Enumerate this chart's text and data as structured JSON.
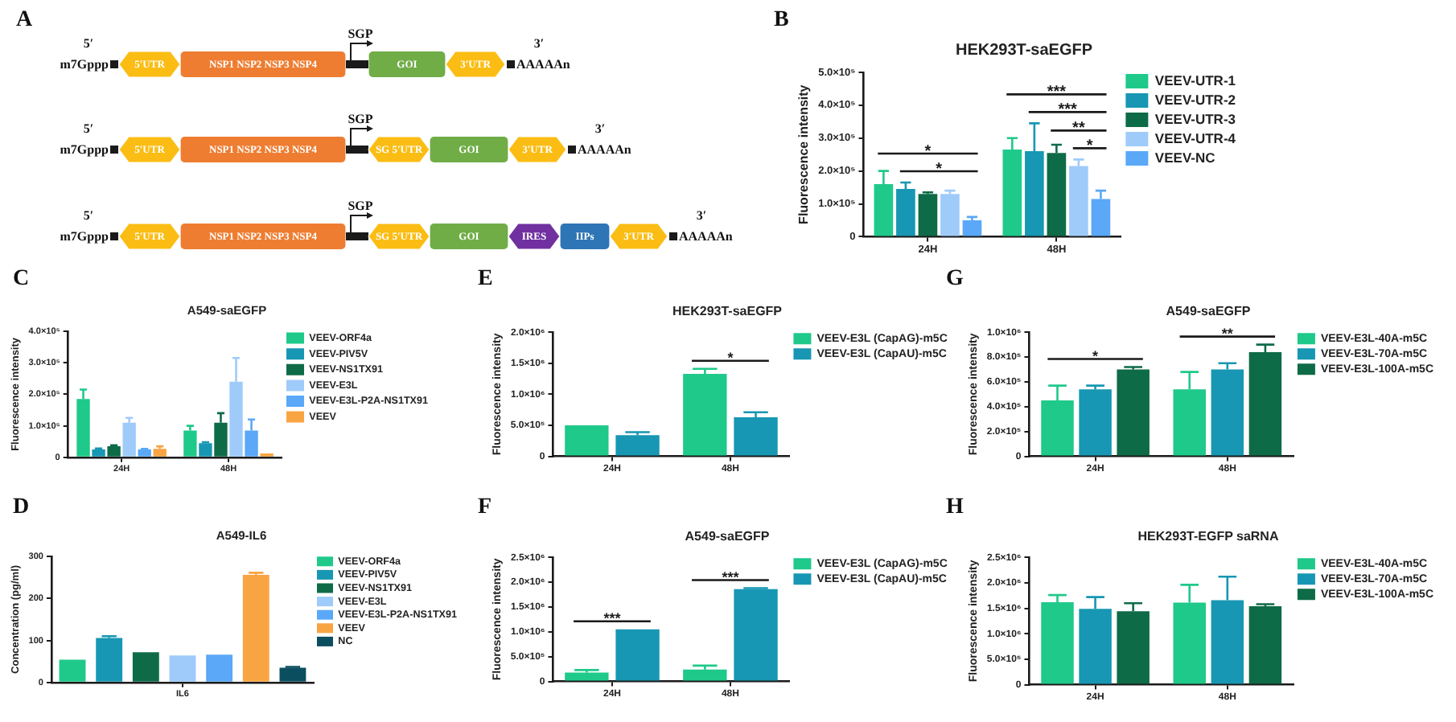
{
  "chart_data": [
    {
      "type": "other",
      "annotations": [
        "A",
        "5′",
        "m7Gppp",
        "5′UTR",
        "NSP1 NSP2 NSP3 NSP4",
        "SGP",
        "GOI",
        "3′UTR",
        "3′",
        "AAAAAn",
        "5′",
        "m7Gppp",
        "5′UTR",
        "NSP1 NSP2 NSP3 NSP4",
        "SGP",
        "SG 5′UTR",
        "GOI",
        "3′UTR",
        "3′",
        "AAAAAn",
        "5′",
        "m7Gppp",
        "5′UTR",
        "NSP1 NSP2 NSP3 NSP4",
        "SGP",
        "SG 5′UTR",
        "GOI",
        "IRES",
        "IIPs",
        "3′UTR",
        "3′",
        "AAAAAn"
      ]
    },
    {
      "type": "bar",
      "title": "HEK293T-saEGFP",
      "ylabel": "Fluorescence intensity",
      "categories": [
        "24H",
        "48H"
      ],
      "series": [
        {
          "name": "VEEV-UTR-1",
          "color": "#1fc98a",
          "values": [
            160000,
            265000
          ],
          "errors": [
            [
              160000,
              200000
            ],
            [
              265000,
              300000
            ]
          ]
        },
        {
          "name": "VEEV-UTR-2",
          "color": "#1797b3",
          "values": [
            145000,
            260000
          ],
          "errors": [
            [
              145000,
              165000
            ],
            [
              260000,
              345000
            ]
          ]
        },
        {
          "name": "VEEV-UTR-3",
          "color": "#0e6b47",
          "values": [
            130000,
            255000
          ],
          "errors": [
            [
              130000,
              135000
            ],
            [
              255000,
              280000
            ]
          ]
        },
        {
          "name": "VEEV-UTR-4",
          "color": "#9fcbfa",
          "values": [
            130000,
            215000
          ],
          "errors": [
            [
              130000,
              140000
            ],
            [
              215000,
              235000
            ]
          ]
        },
        {
          "name": "VEEV-NC",
          "color": "#5aa8f7",
          "values": [
            50000,
            115000
          ],
          "errors": [
            [
              50000,
              60000
            ],
            [
              115000,
              140000
            ]
          ]
        }
      ],
      "ylim": [
        0,
        500000
      ],
      "yticks": [
        0,
        {
          "value": 100000,
          "label": "1.0×10⁵"
        },
        {
          "value": 200000,
          "label": "2.0×10⁵"
        },
        {
          "value": 300000,
          "label": "3.0×10⁵"
        },
        {
          "value": 400000,
          "label": "4.0×10⁵"
        },
        {
          "value": 500000,
          "label": "5.0×10⁵"
        }
      ],
      "legend": "top right",
      "annotations": [
        "B",
        "*",
        "*",
        "***",
        "***",
        "**",
        "*"
      ]
    },
    {
      "type": "bar",
      "title": "A549-saEGFP",
      "ylabel": "Fluorescence intensity",
      "categories": [
        "24H",
        "48H"
      ],
      "series": [
        {
          "name": "VEEV-ORF4a",
          "color": "#1fc98a",
          "values": [
            185000,
            85000
          ],
          "errors": [
            [
              185000,
              215000
            ],
            [
              85000,
              100000
            ]
          ]
        },
        {
          "name": "VEEV-PIV5V",
          "color": "#1797b3",
          "values": [
            25000,
            45000
          ],
          "errors": [
            [
              25000,
              28000
            ],
            [
              45000,
              48000
            ]
          ]
        },
        {
          "name": "VEEV-NS1TX91",
          "color": "#0e6b47",
          "values": [
            35000,
            110000
          ],
          "errors": [
            [
              35000,
              38000
            ],
            [
              110000,
              140000
            ]
          ]
        },
        {
          "name": "VEEV-E3L",
          "color": "#9fcbfa",
          "values": [
            110000,
            240000
          ],
          "errors": [
            [
              110000,
              125000
            ],
            [
              240000,
              315000
            ]
          ]
        },
        {
          "name": "VEEV-E3L-P2A-NS1TX91",
          "color": "#5aa8f7",
          "values": [
            25000,
            85000
          ],
          "errors": [
            [
              25000,
              27000
            ],
            [
              85000,
              120000
            ]
          ]
        },
        {
          "name": "VEEV",
          "color": "#f9a443",
          "values": [
            27000,
            12000
          ],
          "errors": [
            [
              27000,
              35000
            ],
            null
          ]
        }
      ],
      "ylim": [
        0,
        400000
      ],
      "yticks": [
        0,
        {
          "value": 100000,
          "label": "1.0×10⁵"
        },
        {
          "value": 200000,
          "label": "2.0×10⁵"
        },
        {
          "value": 300000,
          "label": "3.0×10⁵"
        },
        {
          "value": 400000,
          "label": "4.0×10⁵"
        }
      ],
      "legend": "top right",
      "annotations": [
        "C"
      ]
    },
    {
      "type": "bar",
      "title": "HEK293T-saEGFP",
      "ylabel": "Fluorescence intensity",
      "categories": [
        "24H",
        "48H"
      ],
      "series": [
        {
          "name": "VEEV-E3L (CapAG)-m5C",
          "color": "#1fc98a",
          "values": [
            500000,
            1330000
          ],
          "errors": [
            null,
            [
              1330000,
              1410000
            ]
          ]
        },
        {
          "name": "VEEV-E3L (CapAU)-m5C",
          "color": "#1797b3",
          "values": [
            340000,
            630000
          ],
          "errors": [
            [
              340000,
              390000
            ],
            [
              630000,
              710000
            ]
          ]
        }
      ],
      "ylim": [
        0,
        2000000
      ],
      "yticks": [
        0,
        {
          "value": 500000,
          "label": "5.0×10⁵"
        },
        {
          "value": 1000000,
          "label": "1.0×10⁶"
        },
        {
          "value": 1500000,
          "label": "1.5×10⁶"
        },
        {
          "value": 2000000,
          "label": "2.0×10⁶"
        }
      ],
      "legend": "top right",
      "annotations": [
        "E",
        "*"
      ]
    },
    {
      "type": "bar",
      "title": "A549-saEGFP",
      "ylabel": "Fluorescence intensity",
      "categories": [
        "24H",
        "48H"
      ],
      "series": [
        {
          "name": "VEEV-E3L-40A-m5C",
          "color": "#1fc98a",
          "values": [
            450000,
            540000
          ],
          "errors": [
            [
              450000,
              570000
            ],
            [
              540000,
              680000
            ]
          ]
        },
        {
          "name": "VEEV-E3L-70A-m5C",
          "color": "#1797b3",
          "values": [
            540000,
            700000
          ],
          "errors": [
            [
              540000,
              570000
            ],
            [
              700000,
              750000
            ]
          ]
        },
        {
          "name": "VEEV-E3L-100A-m5C",
          "color": "#0e6b47",
          "values": [
            700000,
            840000
          ],
          "errors": [
            [
              700000,
              720000
            ],
            [
              840000,
              900000
            ]
          ]
        }
      ],
      "ylim": [
        0,
        1000000
      ],
      "yticks": [
        0,
        {
          "value": 200000,
          "label": "2.0×10⁵"
        },
        {
          "value": 400000,
          "label": "4.0×10⁵"
        },
        {
          "value": 600000,
          "label": "6.0×10⁵"
        },
        {
          "value": 800000,
          "label": "8.0×10⁵"
        },
        {
          "value": 1000000,
          "label": "1.0×10⁶"
        }
      ],
      "legend": "top right",
      "annotations": [
        "G",
        "*",
        "**"
      ]
    },
    {
      "type": "bar",
      "title": "A549-IL6",
      "ylabel": "Concentration (pg/ml)",
      "categories": [
        "IL6"
      ],
      "series": [
        {
          "name": "VEEV-ORF4a",
          "color": "#1fc98a",
          "values": [
            54
          ]
        },
        {
          "name": "VEEV-PIV5V",
          "color": "#1797b3",
          "values": [
            106
          ],
          "errors": [
            [
              106,
              110
            ]
          ]
        },
        {
          "name": "VEEV-NS1TX91",
          "color": "#0e6b47",
          "values": [
            72
          ]
        },
        {
          "name": "VEEV-E3L",
          "color": "#9fcbfa",
          "values": [
            64
          ]
        },
        {
          "name": "VEEV-E3L-P2A-NS1TX91",
          "color": "#5aa8f7",
          "values": [
            66
          ]
        },
        {
          "name": "VEEV",
          "color": "#f9a443",
          "values": [
            256
          ],
          "errors": [
            [
              256,
              261
            ]
          ]
        },
        {
          "name": "NC",
          "color": "#0b4e60",
          "values": [
            35
          ],
          "errors": [
            [
              35,
              37
            ]
          ]
        }
      ],
      "ylim": [
        0,
        300
      ],
      "yticks": [
        0,
        100,
        200,
        300
      ],
      "legend": "top right",
      "annotations": [
        "D"
      ]
    },
    {
      "type": "bar",
      "title": "A549-saEGFP",
      "ylabel": "Fluorescence intensity",
      "categories": [
        "24H",
        "48H"
      ],
      "series": [
        {
          "name": "VEEV-E3L (CapAG)-m5C",
          "color": "#1fc98a",
          "values": [
            180000,
            240000
          ],
          "errors": [
            [
              180000,
              230000
            ],
            [
              240000,
              320000
            ]
          ]
        },
        {
          "name": "VEEV-E3L (CapAU)-m5C",
          "color": "#1797b3",
          "values": [
            1050000,
            1860000
          ],
          "errors": [
            null,
            [
              1860000,
              1880000
            ]
          ]
        }
      ],
      "ylim": [
        0,
        2500000
      ],
      "yticks": [
        0,
        {
          "value": 500000,
          "label": "5.0×10⁵"
        },
        {
          "value": 1000000,
          "label": "1.0×10⁶"
        },
        {
          "value": 1500000,
          "label": "1.5×10⁶"
        },
        {
          "value": 2000000,
          "label": "2.0×10⁶"
        },
        {
          "value": 2500000,
          "label": "2.5×10⁶"
        }
      ],
      "legend": "top right",
      "annotations": [
        "F",
        "***",
        "***"
      ]
    },
    {
      "type": "bar",
      "title": "HEK293T-EGFP saRNA",
      "ylabel": "Fluorescence intensity",
      "categories": [
        "24H",
        "48H"
      ],
      "series": [
        {
          "name": "VEEV-E3L-40A-m5C",
          "color": "#1fc98a",
          "values": [
            1620000,
            1610000
          ],
          "errors": [
            [
              1620000,
              1760000
            ],
            [
              1610000,
              1960000
            ]
          ]
        },
        {
          "name": "VEEV-E3L-70A-m5C",
          "color": "#1797b3",
          "values": [
            1490000,
            1660000
          ],
          "errors": [
            [
              1490000,
              1720000
            ],
            [
              1660000,
              2120000
            ]
          ]
        },
        {
          "name": "VEEV-E3L-100A-m5C",
          "color": "#0e6b47",
          "values": [
            1440000,
            1540000
          ],
          "errors": [
            [
              1440000,
              1600000
            ],
            [
              1540000,
              1580000
            ]
          ]
        }
      ],
      "ylim": [
        0,
        2500000
      ],
      "yticks": [
        0,
        {
          "value": 500000,
          "label": "5.0×10⁵"
        },
        {
          "value": 1000000,
          "label": "1.0×10⁶"
        },
        {
          "value": 1500000,
          "label": "1.5×10⁶"
        },
        {
          "value": 2000000,
          "label": "2.0×10⁶"
        },
        {
          "value": 2500000,
          "label": "2.5×10⁶"
        }
      ],
      "legend": "top right",
      "annotations": [
        "H"
      ]
    }
  ]
}
